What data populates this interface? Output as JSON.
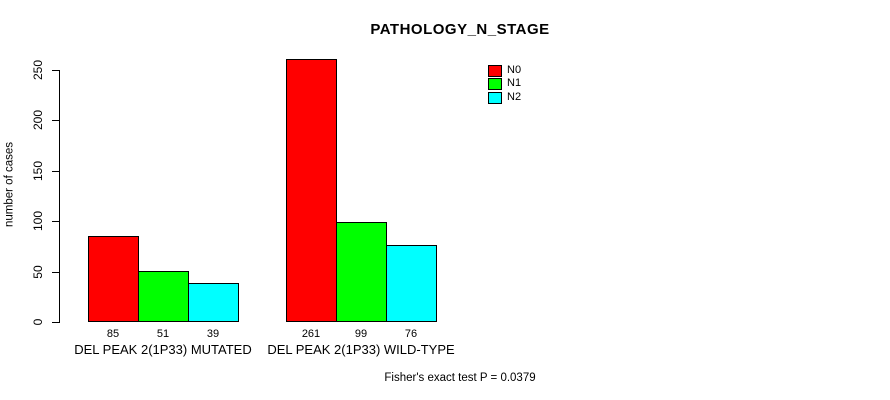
{
  "chart_data": {
    "type": "bar",
    "title": "PATHOLOGY_N_STAGE",
    "xlabel": "",
    "ylabel": "number of cases",
    "categories": [
      "DEL PEAK 2(1P33) MUTATED",
      "DEL PEAK 2(1P33) WILD-TYPE"
    ],
    "series": [
      {
        "name": "N0",
        "color": "#ff0000",
        "values": [
          85,
          261
        ]
      },
      {
        "name": "N1",
        "color": "#00ff00",
        "values": [
          51,
          99
        ]
      },
      {
        "name": "N2",
        "color": "#00ffff",
        "values": [
          39,
          76
        ]
      }
    ],
    "value_labels": [
      [
        85,
        51,
        39
      ],
      [
        261,
        99,
        76
      ]
    ],
    "yticks": [
      0,
      50,
      100,
      150,
      200,
      250
    ],
    "ylim": [
      0,
      265
    ],
    "grid": false,
    "legend_position": "inside-top-right",
    "legend": [
      {
        "label": "N0",
        "color": "#ff0000"
      },
      {
        "label": "N1",
        "color": "#00ff00"
      },
      {
        "label": "N2",
        "color": "#00ffff"
      }
    ],
    "annotation": "Fisher's exact test P = 0.0379",
    "bar_border_color": "#000000",
    "background_color": "#ffffff"
  }
}
